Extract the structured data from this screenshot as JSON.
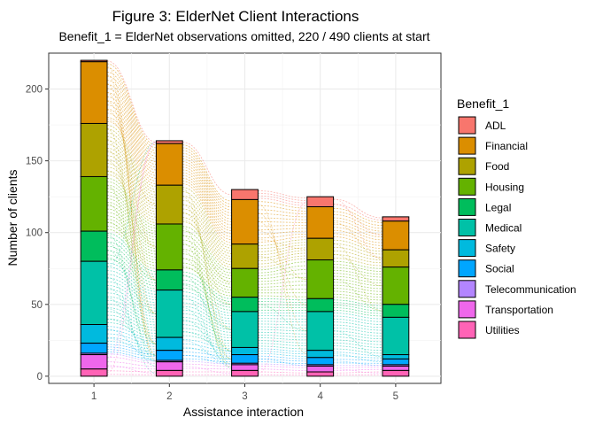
{
  "chart_data": {
    "type": "bar",
    "title": "Figure 3: ElderNet Client Interactions",
    "subtitle": "Benefit_1 = ElderNet observations omitted, 220 / 490 clients at start",
    "xlabel": "Assistance interaction",
    "ylabel": "Number of clients",
    "stacked": true,
    "grid": true,
    "legend_position": "right",
    "legend_title": "Benefit_1",
    "categories": [
      "1",
      "2",
      "3",
      "4",
      "5"
    ],
    "ylim": [
      -5,
      225
    ],
    "yticks": [
      0,
      50,
      100,
      150,
      200
    ],
    "series": [
      {
        "name": "ADL",
        "color": "#F8766D",
        "values": [
          1,
          2,
          7,
          7,
          3
        ]
      },
      {
        "name": "Financial",
        "color": "#DB8E00",
        "values": [
          43,
          29,
          31,
          22,
          20
        ]
      },
      {
        "name": "Food",
        "color": "#AEA200",
        "values": [
          37,
          27,
          17,
          15,
          12
        ]
      },
      {
        "name": "Housing",
        "color": "#64B200",
        "values": [
          38,
          32,
          20,
          27,
          26
        ]
      },
      {
        "name": "Legal",
        "color": "#00BD5C",
        "values": [
          21,
          14,
          10,
          9,
          9
        ]
      },
      {
        "name": "Medical",
        "color": "#00C1A7",
        "values": [
          44,
          33,
          25,
          27,
          26
        ]
      },
      {
        "name": "Safety",
        "color": "#00BADE",
        "values": [
          13,
          9,
          5,
          5,
          3
        ]
      },
      {
        "name": "Social",
        "color": "#00A6FF",
        "values": [
          7,
          7,
          6,
          5,
          4
        ]
      },
      {
        "name": "Telecommunication",
        "color": "#B385FF",
        "values": [
          1,
          1,
          1,
          1,
          1
        ]
      },
      {
        "name": "Transportation",
        "color": "#EF67EB",
        "values": [
          10,
          6,
          4,
          4,
          3
        ]
      },
      {
        "name": "Utilities",
        "color": "#FF63B6",
        "values": [
          5,
          4,
          4,
          3,
          4
        ]
      }
    ]
  }
}
